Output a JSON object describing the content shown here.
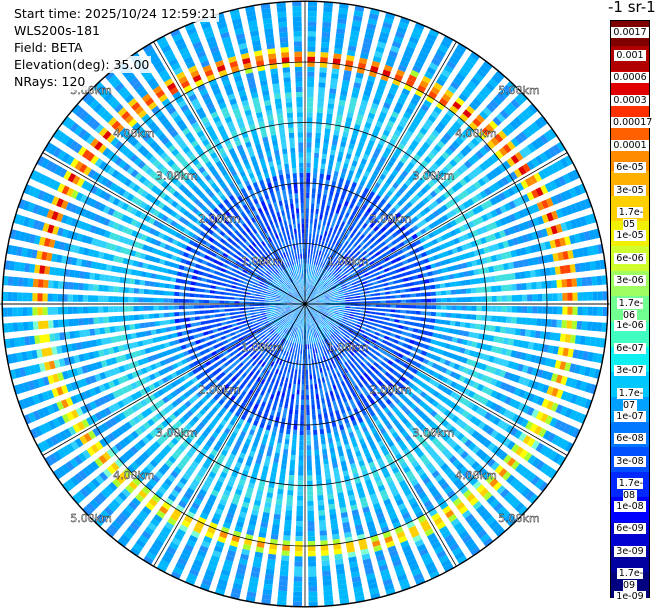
{
  "info": {
    "start_time": "Start time: 2025/10/24 12:59:21",
    "instrument": "WLS200s-181",
    "field": "Field: BETA",
    "elevation": "Elevation(deg): 35.00",
    "nrays": "NRays: 120"
  },
  "colorbar": {
    "title": "-1 sr-1",
    "labels": [
      "0.0017",
      "0.001",
      "0.0006",
      "0.0003",
      "0.00017",
      "0.0001",
      "6e-05",
      "3e-05",
      "1.7e-05",
      "1e-05",
      "6e-06",
      "3e-06",
      "1.7e-06",
      "1e-06",
      "6e-07",
      "3e-07",
      "1.7e-07",
      "1e-07",
      "6e-08",
      "3e-08",
      "1.7e-08",
      "1e-08",
      "6e-09",
      "3e-09",
      "1.7e-09",
      "1e-09"
    ],
    "colors": [
      "#800000",
      "#b00000",
      "#e00000",
      "#ff3000",
      "#ff6000",
      "#ff8c00",
      "#ffb000",
      "#ffd000",
      "#f0f000",
      "#d0ff30",
      "#a0ff60",
      "#70ff90",
      "#40ffc0",
      "#10f0f0",
      "#00c8ff",
      "#00a0ff",
      "#0078ff",
      "#0050ff",
      "#0028ff",
      "#0000ff",
      "#0000d0",
      "#0000a0",
      "#000080"
    ]
  },
  "range_rings": [
    "1.00km",
    "2.00km",
    "3.00km",
    "4.00km",
    "5.00km"
  ]
}
